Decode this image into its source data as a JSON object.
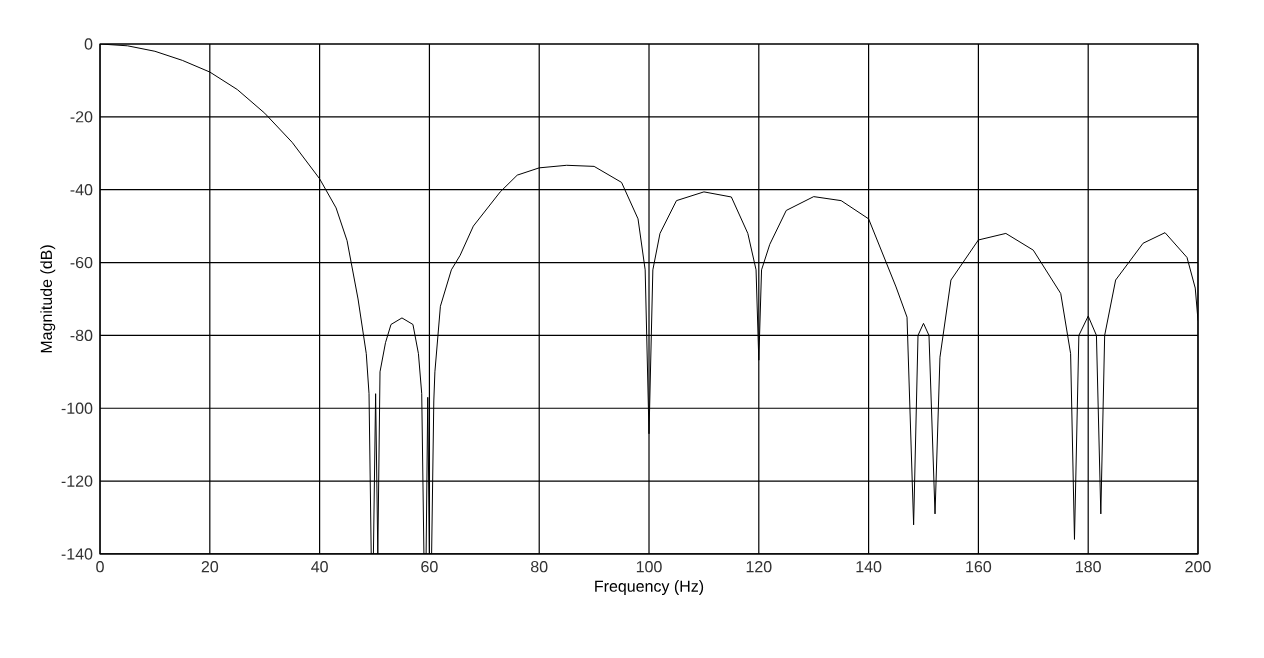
{
  "chart_data": {
    "type": "line",
    "xlabel": "Frequency (Hz)",
    "ylabel": "Magnitude (dB)",
    "xlim": [
      0,
      200
    ],
    "ylim": [
      -140,
      0
    ],
    "xticks": [
      0,
      20,
      40,
      60,
      80,
      100,
      120,
      140,
      160,
      180,
      200
    ],
    "yticks": [
      -140,
      -120,
      -100,
      -80,
      -60,
      -40,
      -20,
      0
    ],
    "grid": true,
    "marker": "none",
    "line_style": "solid",
    "series": [
      {
        "color": "#000000",
        "x": [
          0,
          5,
          10,
          15,
          20,
          25,
          30,
          35,
          40,
          43,
          45,
          47,
          48.5,
          49,
          49.4,
          49.8,
          50.2,
          50.6,
          51,
          52,
          53,
          55,
          57,
          58,
          58.6,
          59,
          59.4,
          59.7,
          60,
          60.4,
          60.8,
          61,
          62,
          64,
          65.6,
          68,
          72.9,
          76,
          80,
          85,
          90,
          95,
          98,
          99.3,
          100,
          100.7,
          102,
          105,
          110,
          115,
          118,
          119.5,
          120,
          120.5,
          122,
          125,
          130,
          135,
          140,
          145,
          147,
          148.2,
          149,
          150,
          151,
          152.1,
          153,
          155,
          160,
          165,
          170,
          175,
          176.8,
          177.5,
          178.3,
          180,
          181.5,
          182.3,
          183,
          185,
          190,
          194,
          198,
          199.5,
          200
        ],
        "values": [
          0,
          -0.5,
          -2,
          -4.5,
          -7.7,
          -12.5,
          -19,
          -27,
          -37,
          -45,
          -54,
          -70,
          -85,
          -96,
          -140,
          -140,
          -96,
          -140,
          -90,
          -82,
          -77,
          -75.2,
          -77,
          -85,
          -96,
          -140,
          -140,
          -97,
          -140,
          -140,
          -98,
          -90,
          -72,
          -62,
          -58,
          -50,
          -40.6,
          -36,
          -34,
          -33.3,
          -33.6,
          -38,
          -48,
          -62,
          -107,
          -62,
          -52,
          -43,
          -40.6,
          -42,
          -52,
          -62,
          -86.8,
          -62,
          -55,
          -45.7,
          -41.9,
          -43,
          -48,
          -66.7,
          -75,
          -132,
          -80,
          -76.7,
          -80,
          -129,
          -86,
          -64.8,
          -53.8,
          -52,
          -56.6,
          -68.5,
          -85,
          -136,
          -80,
          -74.7,
          -80,
          -129,
          -80,
          -64.8,
          -54.7,
          -51.8,
          -58.6,
          -67,
          -75.8
        ]
      }
    ]
  }
}
